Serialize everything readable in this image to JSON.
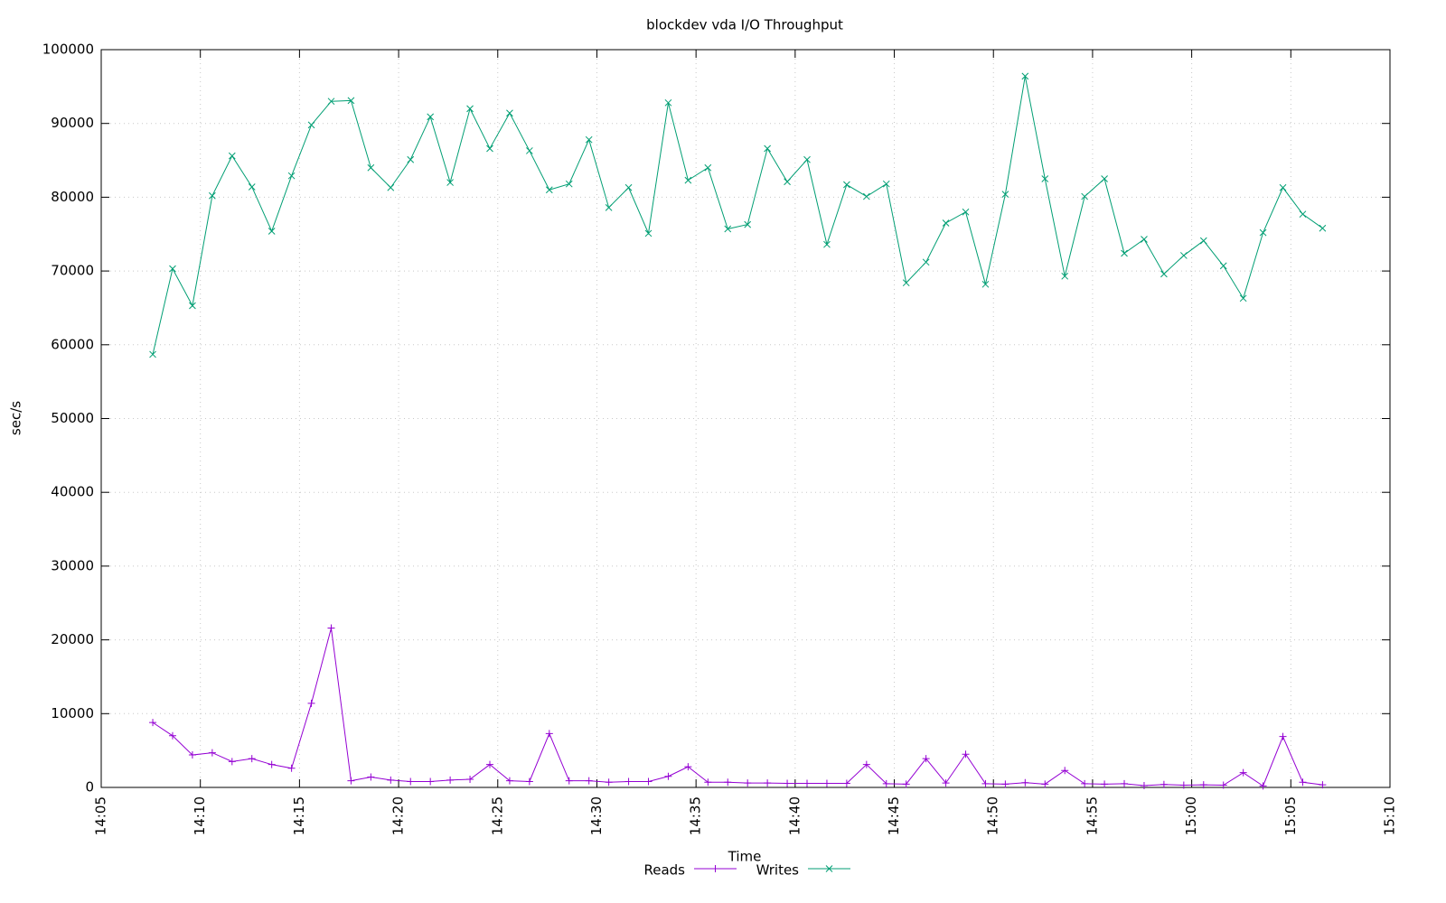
{
  "chart_data": {
    "type": "line",
    "title": "blockdev vda I/O Throughput",
    "x_label": "Time",
    "y_label": "sec/s",
    "x": [
      847.6,
      848.6,
      849.6,
      850.6,
      851.6,
      852.6,
      853.6,
      854.6,
      855.6,
      856.6,
      857.6,
      858.6,
      859.6,
      860.6,
      861.6,
      862.6,
      863.6,
      864.6,
      865.6,
      866.6,
      867.6,
      868.6,
      869.6,
      870.6,
      871.6,
      872.6,
      873.6,
      874.6,
      875.6,
      876.6,
      877.6,
      878.6,
      879.6,
      880.6,
      881.6,
      882.6,
      883.6,
      884.6,
      885.6,
      886.6,
      887.6,
      888.6,
      889.6,
      890.6,
      891.6,
      892.6,
      893.6,
      894.6,
      895.6,
      896.6,
      897.6,
      898.6,
      899.6,
      900.6,
      901.6,
      902.6,
      903.6,
      904.6,
      905.6,
      906.6
    ],
    "series": [
      {
        "name": "Reads",
        "color": "#9400d3",
        "marker": "plus",
        "values": [
          8800,
          7000,
          4400,
          4700,
          3500,
          3900,
          3100,
          2600,
          11400,
          21600,
          900,
          1400,
          1000,
          800,
          800,
          1000,
          1100,
          3100,
          900,
          800,
          7300,
          900,
          900,
          700,
          800,
          800,
          1500,
          2800,
          700,
          700,
          600,
          600,
          550,
          550,
          550,
          550,
          3100,
          500,
          450,
          3900,
          600,
          4500,
          500,
          450,
          650,
          450,
          2300,
          500,
          450,
          500,
          250,
          400,
          300,
          350,
          300,
          2000,
          200,
          6900,
          700,
          350
        ]
      },
      {
        "name": "Writes",
        "color": "#009e73",
        "marker": "cross",
        "values": [
          58700,
          70300,
          65300,
          80200,
          85600,
          81400,
          75400,
          82900,
          89800,
          93000,
          93100,
          84000,
          81300,
          85100,
          90900,
          82000,
          92000,
          86600,
          91400,
          86300,
          81000,
          81800,
          87800,
          78600,
          81300,
          75100,
          92800,
          82300,
          84000,
          75700,
          76300,
          86600,
          82100,
          85100,
          73600,
          81700,
          80100,
          81800,
          68400,
          71200,
          76500,
          78000,
          68200,
          80400,
          96400,
          82500,
          69300,
          80100,
          82500,
          72400,
          74300,
          69600,
          72100,
          74100,
          70700,
          66300,
          75200,
          81300,
          77700,
          75800
        ]
      }
    ],
    "xlim": [
      845,
      910
    ],
    "xticks": [
      {
        "value": 845,
        "label": "14:05"
      },
      {
        "value": 850,
        "label": "14:10"
      },
      {
        "value": 855,
        "label": "14:15"
      },
      {
        "value": 860,
        "label": "14:20"
      },
      {
        "value": 865,
        "label": "14:25"
      },
      {
        "value": 870,
        "label": "14:30"
      },
      {
        "value": 875,
        "label": "14:35"
      },
      {
        "value": 880,
        "label": "14:40"
      },
      {
        "value": 885,
        "label": "14:45"
      },
      {
        "value": 890,
        "label": "14:50"
      },
      {
        "value": 895,
        "label": "14:55"
      },
      {
        "value": 900,
        "label": "15:00"
      },
      {
        "value": 905,
        "label": "15:05"
      },
      {
        "value": 910,
        "label": "15:10"
      }
    ],
    "ylim": [
      0,
      100000
    ],
    "yticks": [
      0,
      10000,
      20000,
      30000,
      40000,
      50000,
      60000,
      70000,
      80000,
      90000,
      100000
    ],
    "grid": true,
    "legend": "bottom"
  }
}
